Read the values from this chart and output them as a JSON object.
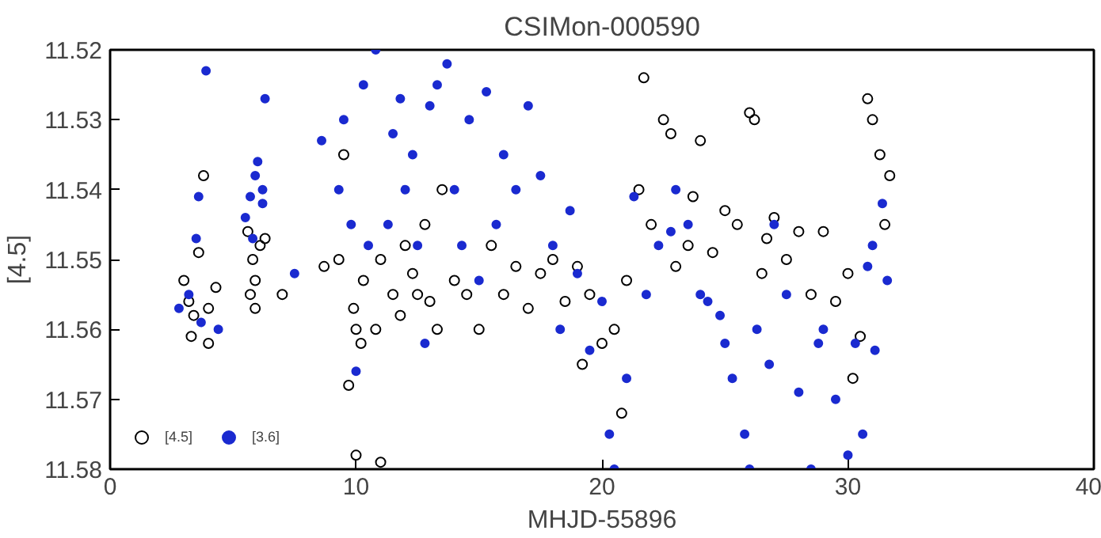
{
  "chart_data": {
    "type": "scatter",
    "title": "CSIMon-000590",
    "xlabel": "MHJD-55896",
    "ylabel": "[4.5]",
    "xlim": [
      0,
      40
    ],
    "xticks": [
      0,
      10,
      20,
      30,
      40
    ],
    "ylim": [
      11.58,
      11.52
    ],
    "yticks": [
      11.52,
      11.53,
      11.54,
      11.55,
      11.56,
      11.57,
      11.58
    ],
    "grid": false,
    "legend": "bottom left",
    "marker": "circle",
    "series": [
      {
        "name": "[4.5]",
        "color": "#000000",
        "x": [
          3.0,
          3.2,
          3.4,
          3.3,
          3.8,
          4.0,
          3.6,
          4.3,
          4.0,
          5.6,
          5.8,
          5.9,
          6.1,
          6.3,
          5.9,
          5.7,
          7.0,
          8.7,
          9.3,
          9.5,
          9.7,
          10.0,
          10.2,
          9.9,
          10.0,
          10.3,
          10.8,
          11.0,
          11.0,
          11.5,
          11.8,
          12.0,
          12.3,
          12.5,
          13.0,
          13.3,
          12.8,
          13.5,
          14,
          14.5,
          15,
          15.5,
          16,
          16.5,
          17,
          17.5,
          18,
          18.5,
          19,
          19.5,
          20,
          20.5,
          21,
          21.7,
          21.5,
          22,
          22.5,
          22.8,
          23,
          23.5,
          23.7,
          24,
          24.5,
          25,
          25.5,
          26,
          26.2,
          26.5,
          27,
          27.5,
          28,
          28.5,
          29,
          29.5,
          30,
          30.5,
          30.8,
          31,
          31.3,
          31.5,
          31.7,
          20.8,
          19.2,
          26.7,
          30.2
        ],
        "values": [
          11.553,
          11.556,
          11.558,
          11.561,
          11.538,
          11.562,
          11.549,
          11.554,
          11.557,
          11.546,
          11.55,
          11.553,
          11.548,
          11.547,
          11.557,
          11.555,
          11.555,
          11.551,
          11.55,
          11.535,
          11.568,
          11.56,
          11.562,
          11.557,
          11.578,
          11.553,
          11.56,
          11.579,
          11.55,
          11.555,
          11.558,
          11.548,
          11.552,
          11.555,
          11.556,
          11.56,
          11.545,
          11.54,
          11.553,
          11.555,
          11.56,
          11.548,
          11.555,
          11.551,
          11.557,
          11.552,
          11.55,
          11.556,
          11.551,
          11.555,
          11.562,
          11.56,
          11.553,
          11.524,
          11.54,
          11.545,
          11.53,
          11.532,
          11.551,
          11.548,
          11.541,
          11.533,
          11.549,
          11.543,
          11.545,
          11.529,
          11.53,
          11.552,
          11.544,
          11.55,
          11.546,
          11.555,
          11.546,
          11.556,
          11.552,
          11.561,
          11.527,
          11.53,
          11.535,
          11.545,
          11.538,
          11.572,
          11.565,
          11.547,
          11.567
        ]
      },
      {
        "name": "[3.6]",
        "color": "#1a2ad0",
        "x": [
          2.8,
          3.2,
          3.5,
          3.6,
          3.9,
          3.7,
          4.4,
          5.5,
          5.7,
          5.9,
          6.0,
          6.2,
          6.2,
          5.8,
          6.3,
          7.5,
          8.6,
          9.3,
          9.5,
          9.8,
          10.0,
          10.3,
          10.5,
          10.8,
          11.3,
          11.5,
          11.8,
          12.0,
          12.3,
          12.5,
          12.8,
          13.0,
          13.3,
          13.7,
          14,
          14.3,
          14.6,
          15,
          15.3,
          15.7,
          16.0,
          16.5,
          17,
          17.5,
          18,
          18.3,
          18.7,
          19,
          19.5,
          20,
          20.3,
          20.5,
          21,
          21.3,
          21.8,
          22.3,
          22.8,
          23.0,
          23.5,
          24,
          24.3,
          24.8,
          25.0,
          25.3,
          25.8,
          26.0,
          26.3,
          26.8,
          27.0,
          27.5,
          28,
          28.5,
          28.8,
          29,
          29.5,
          30,
          30.3,
          30.6,
          30.8,
          31.1,
          31.4,
          31.6,
          31.0
        ],
        "values": [
          11.557,
          11.555,
          11.547,
          11.541,
          11.523,
          11.559,
          11.56,
          11.544,
          11.541,
          11.538,
          11.536,
          11.542,
          11.54,
          11.547,
          11.527,
          11.552,
          11.533,
          11.54,
          11.53,
          11.545,
          11.566,
          11.525,
          11.548,
          11.52,
          11.545,
          11.532,
          11.527,
          11.54,
          11.535,
          11.548,
          11.562,
          11.528,
          11.525,
          11.522,
          11.54,
          11.548,
          11.53,
          11.553,
          11.526,
          11.545,
          11.535,
          11.54,
          11.528,
          11.538,
          11.548,
          11.56,
          11.543,
          11.552,
          11.563,
          11.556,
          11.575,
          11.58,
          11.567,
          11.541,
          11.555,
          11.548,
          11.546,
          11.54,
          11.545,
          11.555,
          11.556,
          11.558,
          11.562,
          11.567,
          11.575,
          11.58,
          11.56,
          11.565,
          11.545,
          11.555,
          11.569,
          11.58,
          11.562,
          11.56,
          11.57,
          11.578,
          11.562,
          11.575,
          11.551,
          11.563,
          11.542,
          11.553,
          11.548
        ]
      }
    ]
  }
}
